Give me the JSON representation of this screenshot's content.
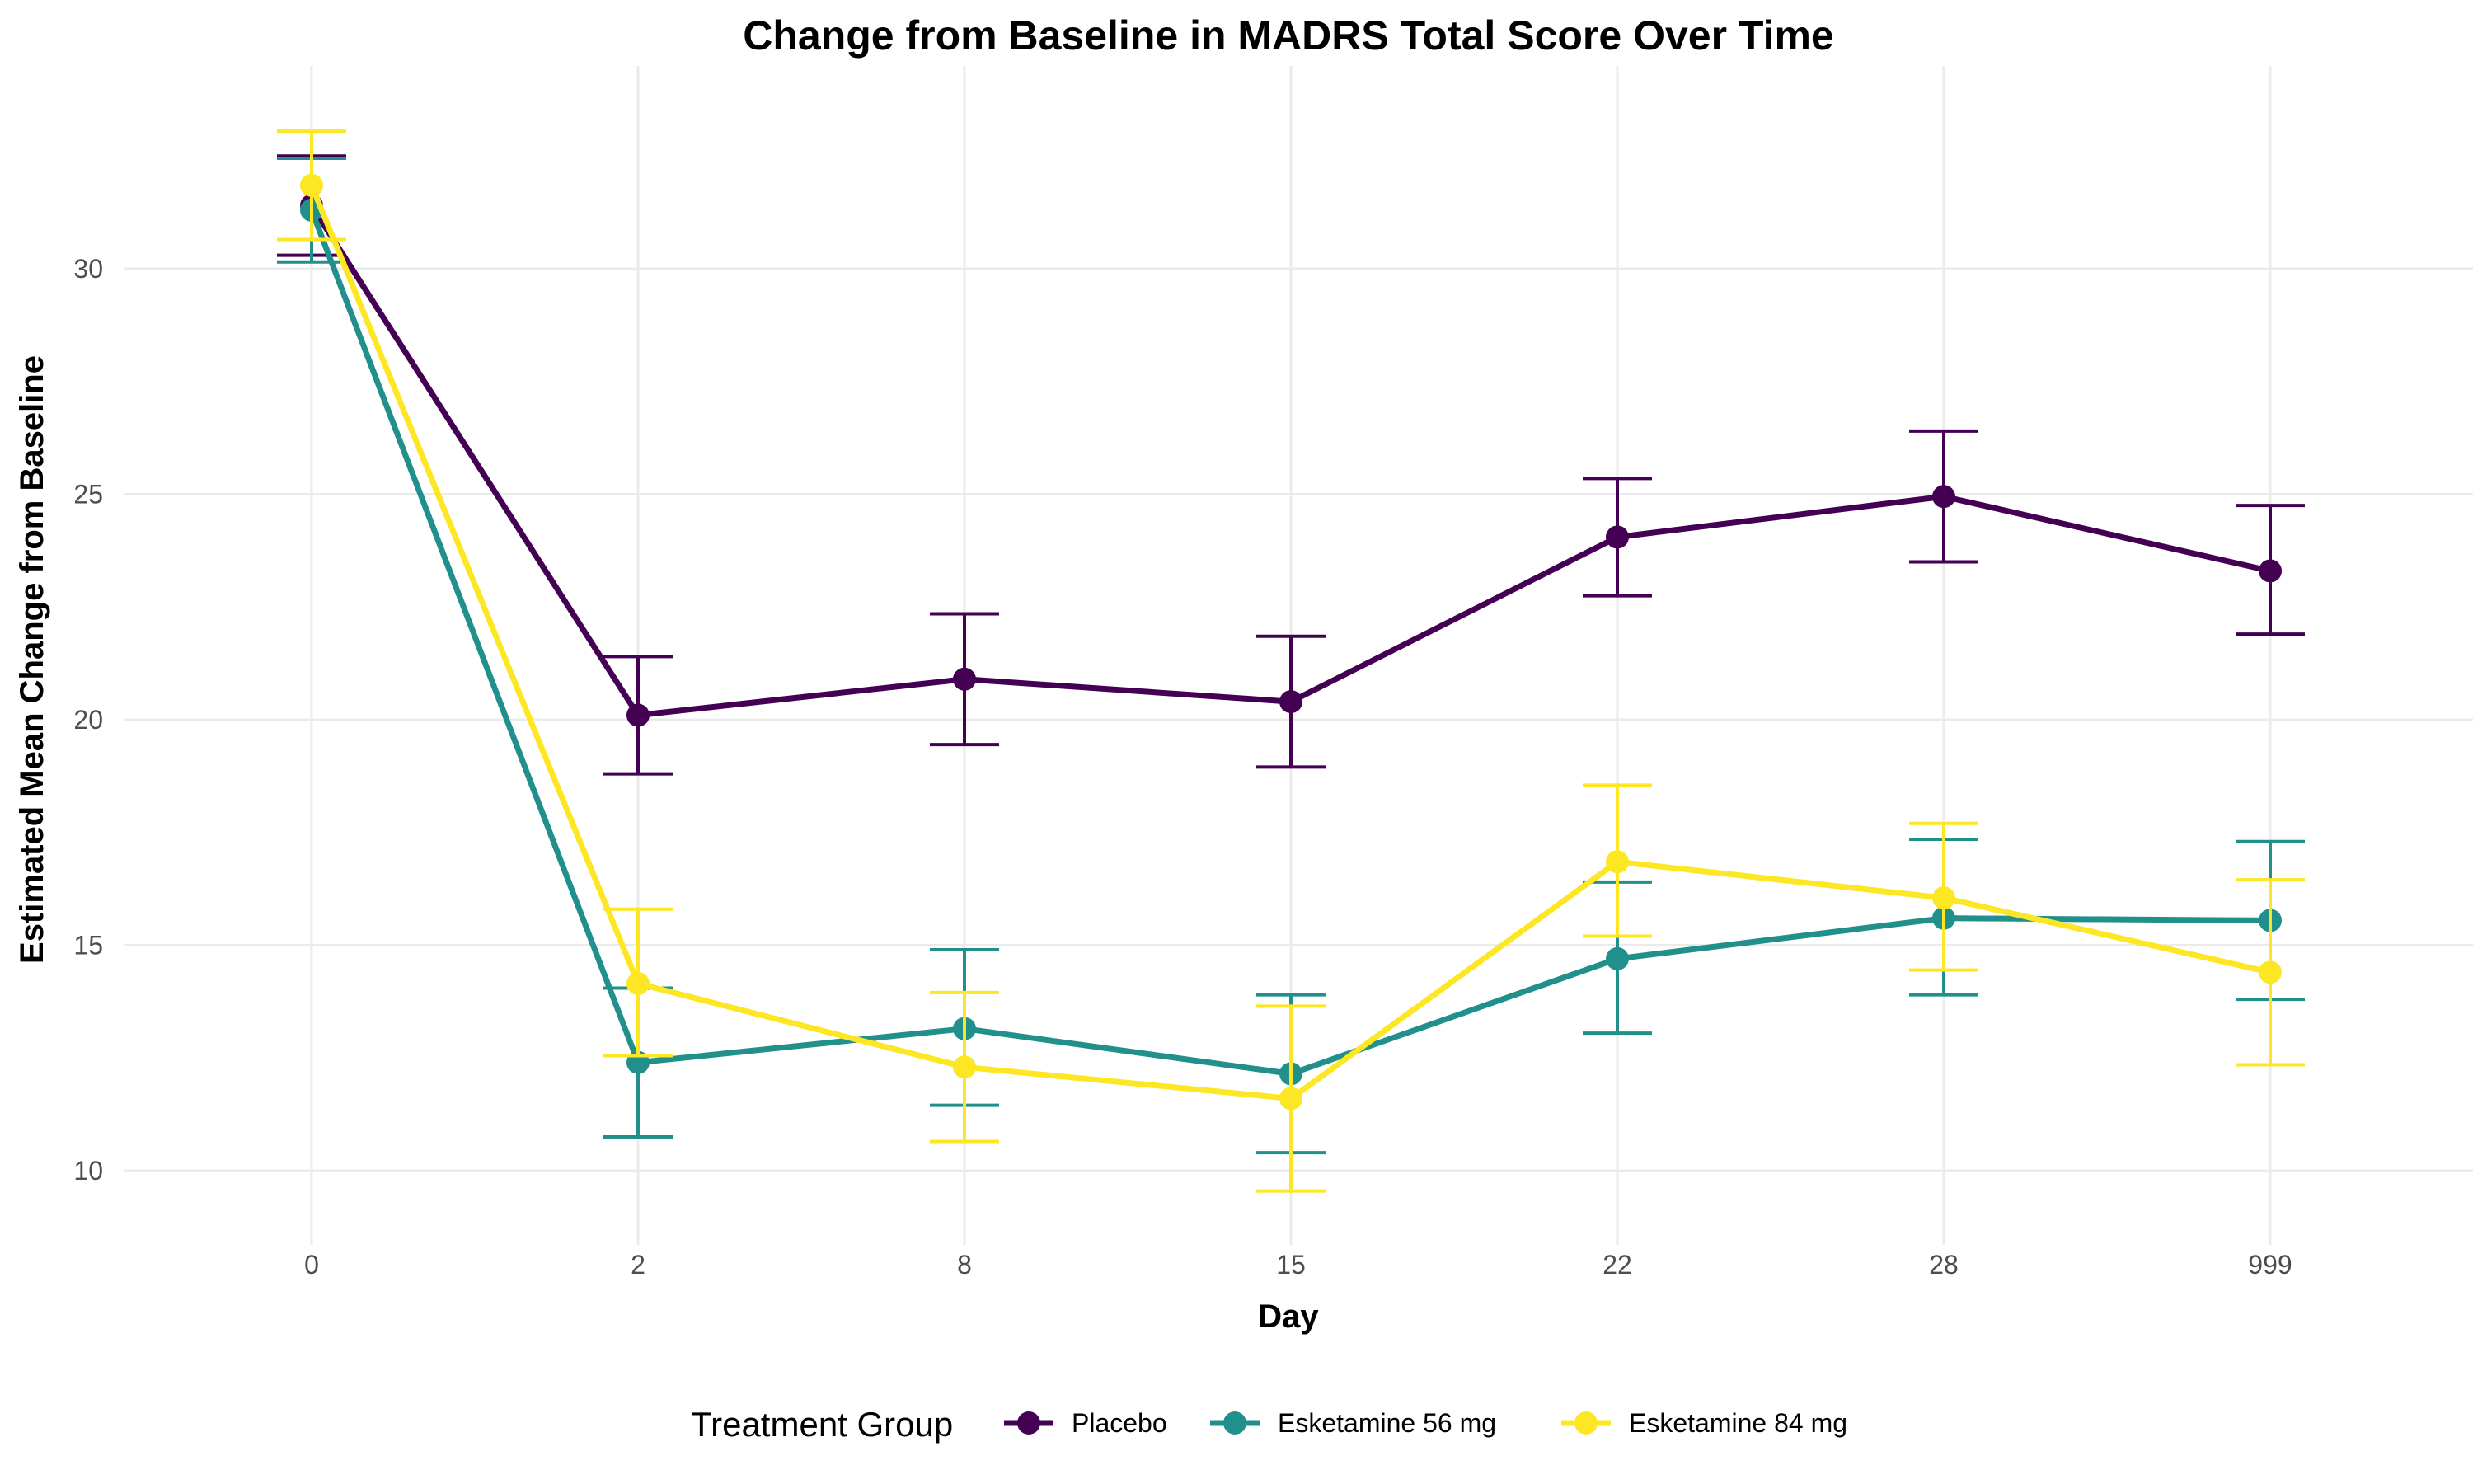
{
  "chart_data": {
    "type": "line",
    "title": "Change from Baseline in MADRS Total Score Over Time",
    "xlabel": "Day",
    "ylabel": "Estimated Mean Change from Baseline",
    "categories": [
      "0",
      "2",
      "8",
      "15",
      "22",
      "28",
      "999"
    ],
    "yticks": [
      10,
      15,
      20,
      25,
      30
    ],
    "ylim": [
      8.4,
      33.4
    ],
    "grid": true,
    "legend": {
      "title": "Treatment Group",
      "position": "bottom"
    },
    "series": [
      {
        "name": "Placebo",
        "color": "#440154",
        "values": [
          31.4,
          20.1,
          20.9,
          20.4,
          24.05,
          24.95,
          23.3
        ],
        "lower": [
          30.3,
          18.8,
          19.45,
          18.95,
          22.75,
          23.5,
          21.9
        ],
        "upper": [
          32.5,
          21.4,
          22.35,
          21.85,
          25.35,
          26.4,
          24.75
        ]
      },
      {
        "name": "Esketamine 56 mg",
        "color": "#21908C",
        "values": [
          31.3,
          12.4,
          13.15,
          12.15,
          14.7,
          15.6,
          15.55
        ],
        "lower": [
          30.15,
          10.75,
          11.45,
          10.4,
          13.05,
          13.9,
          13.8
        ],
        "upper": [
          32.45,
          14.05,
          14.9,
          13.9,
          16.4,
          17.35,
          17.3
        ]
      },
      {
        "name": "Esketamine 84 mg",
        "color": "#FDE725",
        "values": [
          31.85,
          14.15,
          12.3,
          11.6,
          16.85,
          16.05,
          14.4
        ],
        "lower": [
          30.65,
          12.55,
          10.65,
          9.55,
          15.2,
          14.45,
          12.35
        ],
        "upper": [
          33.05,
          15.8,
          13.95,
          13.65,
          18.55,
          17.7,
          16.45
        ]
      }
    ]
  }
}
